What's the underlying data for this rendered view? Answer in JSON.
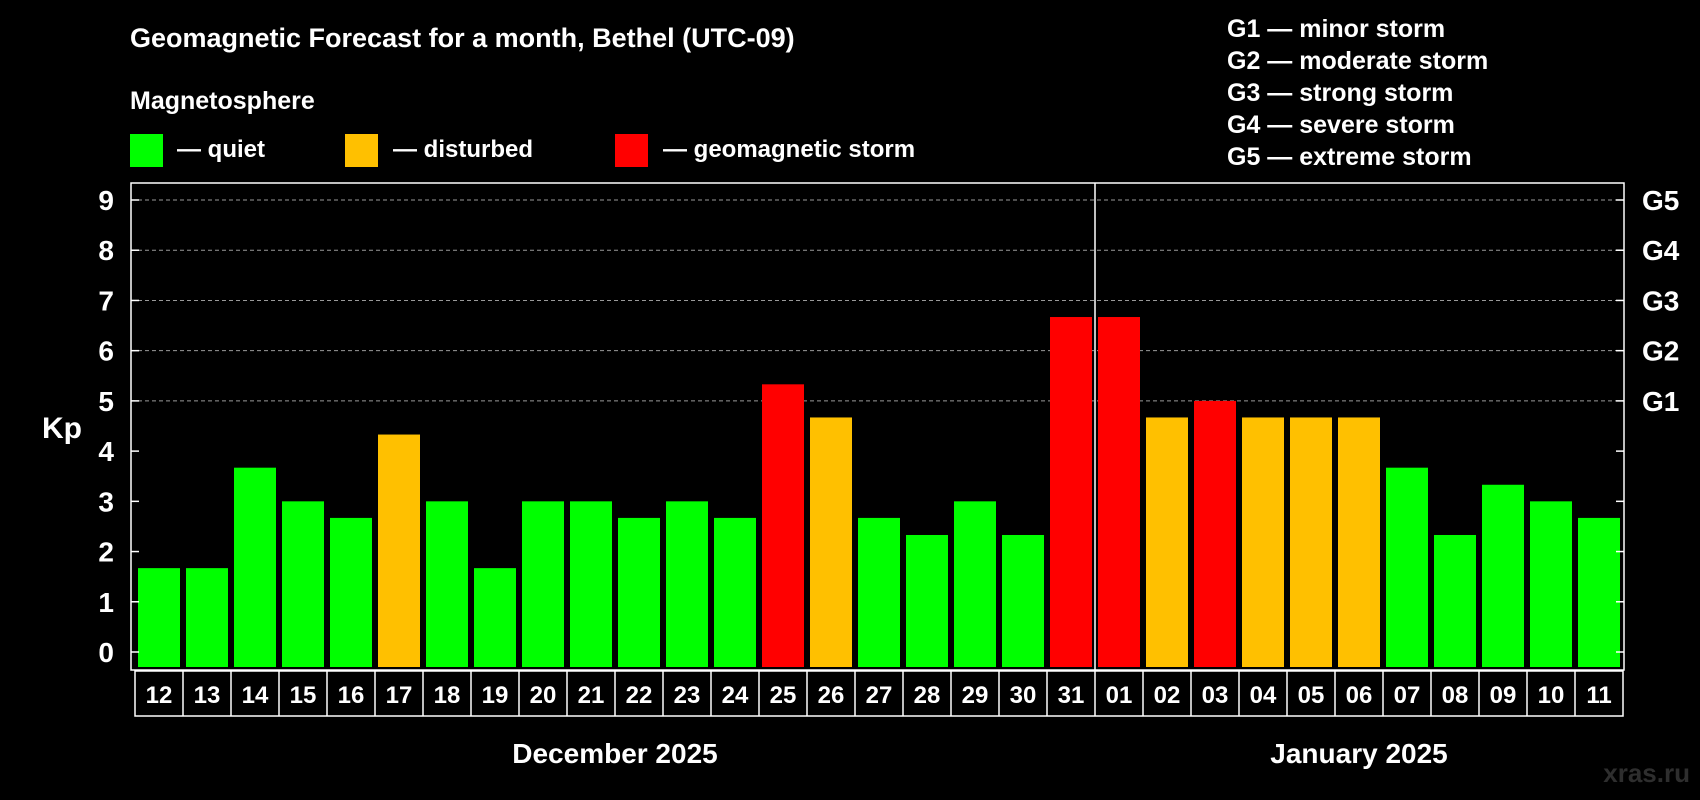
{
  "title": "Geomagnetic Forecast for a month, Bethel (UTC-09)",
  "legend": {
    "heading": "Magnetosphere",
    "items": [
      {
        "label": "— quiet",
        "color": "#00FF00"
      },
      {
        "label": "— disturbed",
        "color": "#FFC000"
      },
      {
        "label": "— geomagnetic storm",
        "color": "#FF0000"
      }
    ]
  },
  "storm_scale": [
    "G1 — minor storm",
    "G2 — moderate storm",
    "G3 — strong storm",
    "G4 — severe storm",
    "G5 — extreme storm"
  ],
  "watermark": "xras.ru",
  "chart_data": {
    "type": "bar",
    "title": "Geomagnetic Forecast for a month, Bethel (UTC-09)",
    "ylabel": "Kp",
    "ylim": [
      0,
      9
    ],
    "yticks": [
      "0",
      "1",
      "2",
      "3",
      "4",
      "5",
      "6",
      "7",
      "8",
      "9"
    ],
    "right_axis": [
      {
        "kp": 5,
        "label": "G1"
      },
      {
        "kp": 6,
        "label": "G2"
      },
      {
        "kp": 7,
        "label": "G3"
      },
      {
        "kp": 8,
        "label": "G4"
      },
      {
        "kp": 9,
        "label": "G5"
      }
    ],
    "grid": "dashed horizontal at Kp 5-9",
    "categories": [
      "12",
      "13",
      "14",
      "15",
      "16",
      "17",
      "18",
      "19",
      "20",
      "21",
      "22",
      "23",
      "24",
      "25",
      "26",
      "27",
      "28",
      "29",
      "30",
      "31",
      "01",
      "02",
      "03",
      "04",
      "05",
      "06",
      "07",
      "08",
      "09",
      "10",
      "11"
    ],
    "values": [
      1.67,
      1.67,
      3.67,
      3.0,
      2.67,
      4.33,
      3.0,
      1.67,
      3.0,
      3.0,
      2.67,
      3.0,
      2.67,
      5.33,
      4.67,
      2.67,
      2.33,
      3.0,
      2.33,
      6.67,
      6.67,
      4.67,
      5.0,
      4.67,
      4.67,
      4.67,
      3.67,
      2.33,
      3.33,
      3.0,
      2.67
    ],
    "status": [
      "quiet",
      "quiet",
      "quiet",
      "quiet",
      "quiet",
      "disturbed",
      "quiet",
      "quiet",
      "quiet",
      "quiet",
      "quiet",
      "quiet",
      "quiet",
      "storm",
      "disturbed",
      "quiet",
      "quiet",
      "quiet",
      "quiet",
      "storm",
      "storm",
      "disturbed",
      "storm",
      "disturbed",
      "disturbed",
      "disturbed",
      "quiet",
      "quiet",
      "quiet",
      "quiet",
      "quiet"
    ],
    "status_colors": {
      "quiet": "#00FF00",
      "disturbed": "#FFC000",
      "storm": "#FF0000"
    },
    "months": [
      {
        "label": "December 2025",
        "first_index": 0,
        "last_index": 19
      },
      {
        "label": "January 2025",
        "first_index": 20,
        "last_index": 30
      }
    ],
    "month_divider_after_index": 19
  }
}
